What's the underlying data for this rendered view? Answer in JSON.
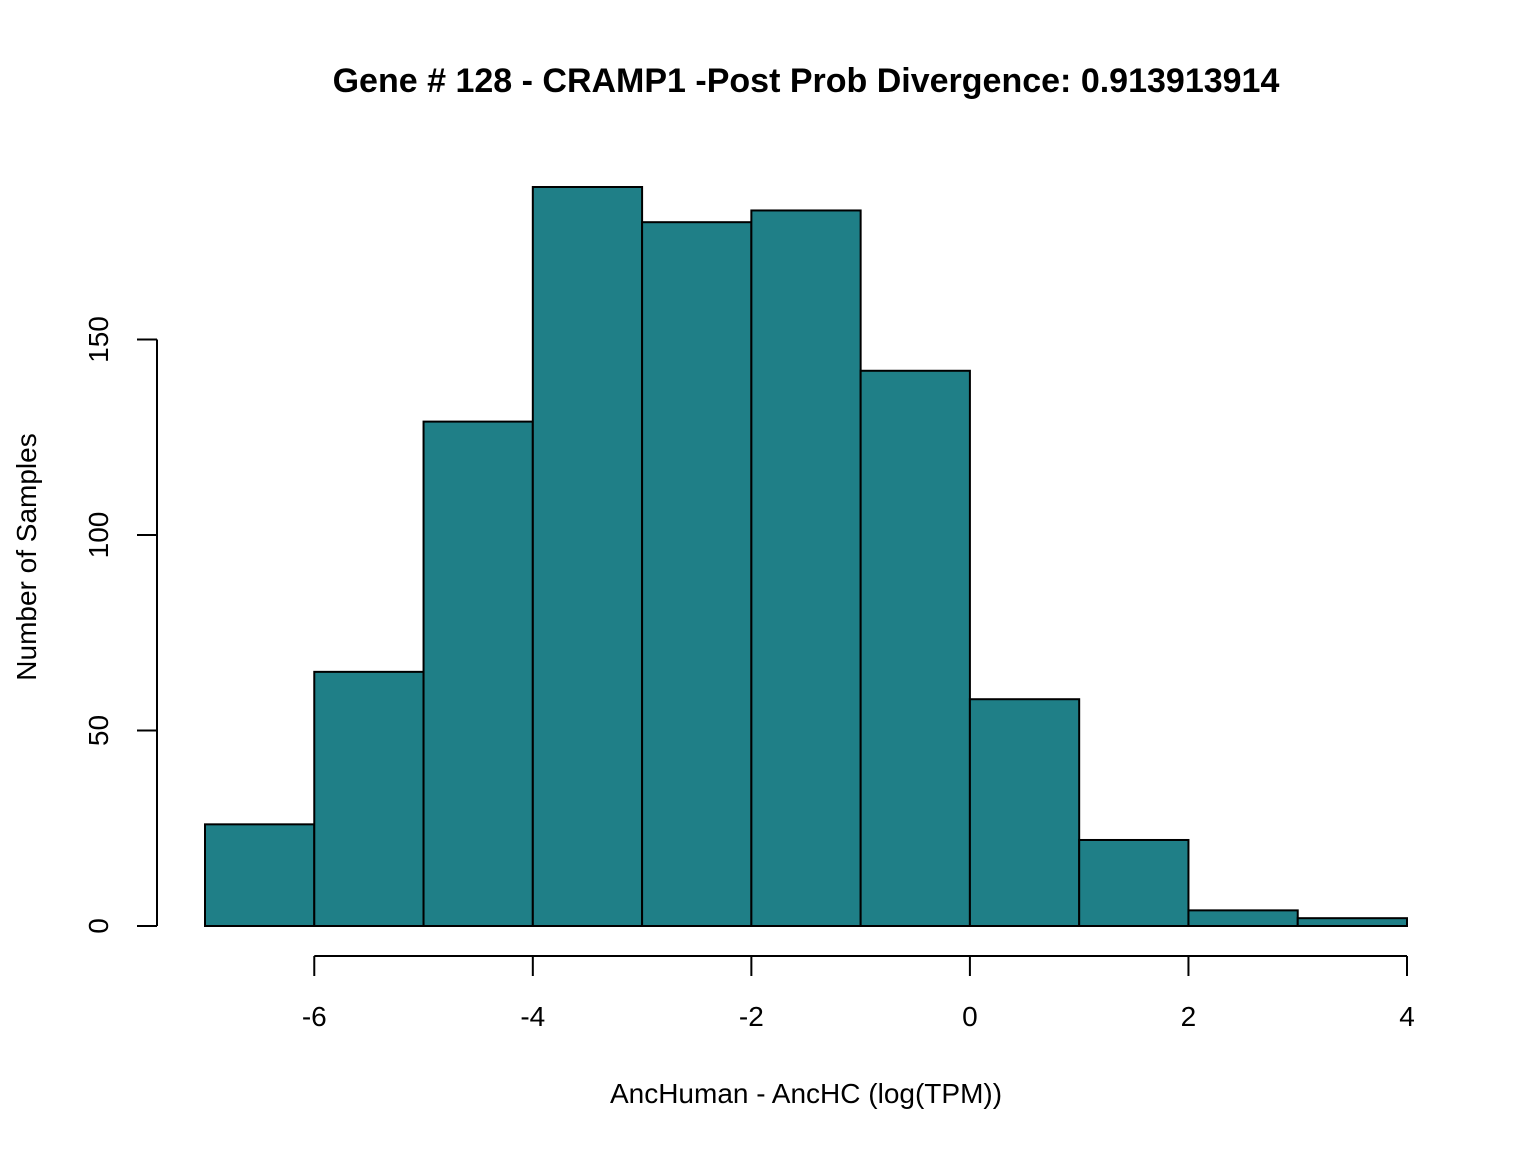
{
  "chart_data": {
    "type": "bar",
    "title": "Gene # 128 - CRAMP1 -Post Prob Divergence: 0.913913914",
    "xlabel": "AncHuman - AncHC (log(TPM))",
    "ylabel": "Number of Samples",
    "bin_edges": [
      -7,
      -6,
      -5,
      -4,
      -3,
      -2,
      -1,
      0,
      1,
      2,
      3,
      4
    ],
    "values": [
      26,
      65,
      129,
      189,
      180,
      183,
      142,
      58,
      22,
      4,
      2
    ],
    "xlim": [
      -7,
      4
    ],
    "ylim": [
      0,
      189
    ],
    "x_ticks": [
      -6,
      -4,
      -2,
      0,
      2,
      4
    ],
    "x_tick_labels": [
      "-6",
      "-4",
      "-2",
      "0",
      "2",
      "4"
    ],
    "y_ticks": [
      0,
      50,
      100,
      150
    ],
    "y_tick_labels": [
      "0",
      "50",
      "100",
      "150"
    ],
    "bar_color": "#1f7f87",
    "grid": false
  }
}
